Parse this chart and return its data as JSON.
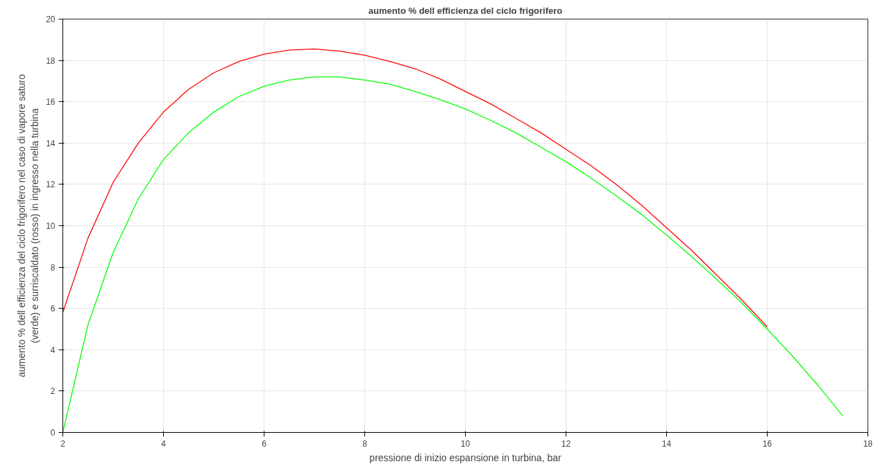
{
  "chart_data": {
    "type": "line",
    "title": "aumento % dell efficienza del ciclo frigorifero",
    "xlabel": "pressione di inizio espansione in turbina, bar",
    "ylabel": "aumento % dell efficienza del ciclo frigorifero nel caso di vapore saturo (verde) e surriscaldato (rosso) in ingresso nella turbina",
    "x": [
      2,
      2.5,
      3,
      3.5,
      4,
      4.5,
      5,
      5.5,
      6,
      6.5,
      7,
      7.5,
      8,
      8.5,
      9,
      9.5,
      10,
      10.5,
      11,
      11.5,
      12,
      12.5,
      13,
      13.5,
      14,
      14.5,
      15,
      15.5,
      16,
      16.5,
      17,
      17.5
    ],
    "series": [
      {
        "color": "#ff0000",
        "values": [
          5.8,
          9.4,
          12.1,
          14.0,
          15.5,
          16.6,
          17.4,
          17.95,
          18.3,
          18.5,
          18.55,
          18.45,
          18.25,
          17.95,
          17.6,
          17.1,
          16.5,
          15.9,
          15.2,
          14.5,
          13.7,
          12.9,
          12.0,
          11.0,
          9.9,
          8.8,
          7.6,
          6.4,
          5.1,
          null,
          null,
          null
        ]
      },
      {
        "color": "#00ff00",
        "values": [
          0,
          5.2,
          8.7,
          11.3,
          13.2,
          14.5,
          15.5,
          16.25,
          16.75,
          17.05,
          17.2,
          17.2,
          17.05,
          16.85,
          16.5,
          16.1,
          15.65,
          15.1,
          14.5,
          13.8,
          13.1,
          12.3,
          11.45,
          10.55,
          9.55,
          8.5,
          7.4,
          6.25,
          5.0,
          3.7,
          2.3,
          0.8
        ]
      }
    ],
    "xlim": [
      2,
      18
    ],
    "ylim": [
      0,
      20
    ],
    "xticks": [
      2,
      4,
      6,
      8,
      10,
      12,
      14,
      16,
      18
    ],
    "yticks": [
      0,
      2,
      4,
      6,
      8,
      10,
      12,
      14,
      16,
      18,
      20
    ],
    "grid": true,
    "marker": "none",
    "line_style": "solid"
  }
}
